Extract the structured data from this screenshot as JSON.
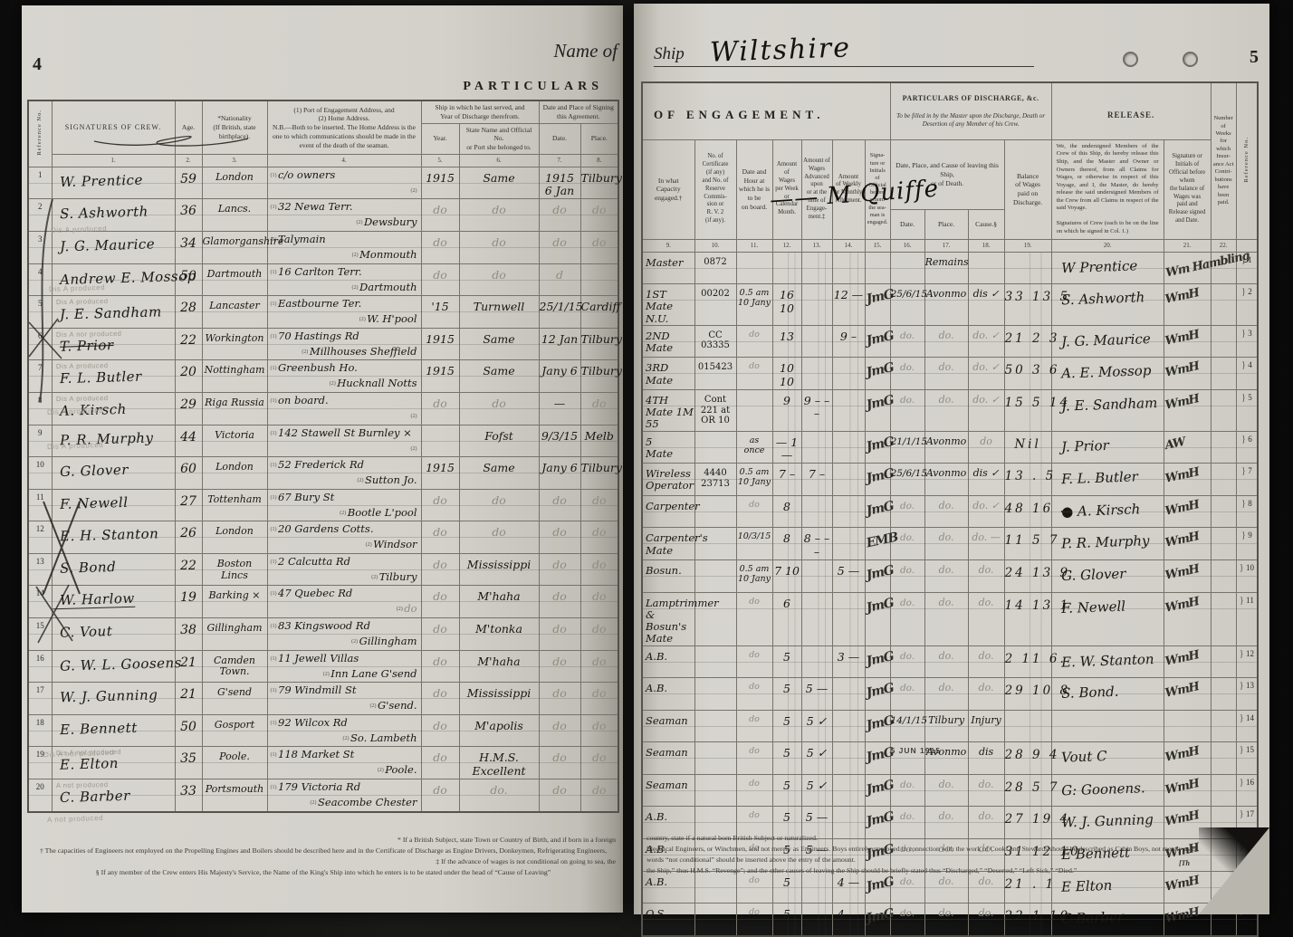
{
  "page_left": {
    "page_number": "4",
    "name_of_label": "Name of",
    "title": "PARTICULARS",
    "columns": {
      "ref": "Reference No.",
      "signatures": "SIGNATURES OF CREW.",
      "age": "Age.",
      "nationality": "*Nationality\n(If British, state\nbirthplace).",
      "address": "(1) Port of Engagement Address, and\n(2) Home Address.\nN.B.—Both to be inserted.  The Home Address is the\none to which communications should be made in the\nevent of the death of the seaman.",
      "ship_group": "Ship in which he last served, and\nYear of Discharge therefrom.",
      "year": "Year.",
      "ship_name": "State Name and Official No.\nor Port she belonged to.",
      "sign_group": "Date and Place of Signing\nthis Agreement.",
      "date": "Date.",
      "place": "Place."
    },
    "colnums": [
      "1.",
      "2.",
      "3.",
      "4.",
      "5.",
      "6.",
      "7.",
      "8."
    ],
    "margin_stamps": [
      "Dis A produced",
      "Dis A produced",
      "Dis A produced",
      "Dis A produced",
      "Dis A not produced",
      "A not produced"
    ],
    "footnotes": [
      "* If a British Subject, state Town or Country of Birth, and if born in a foreign",
      "† The capacities of Engineers not employed on the Propelling Engines and Boilers should be described here and in the Certificate of Discharge as Engine Drivers, Donkeymen, Refrigerating Engineers,",
      "‡ If the advance of wages is not conditional on going to sea, the",
      "§ If any member of the Crew enters His Majesty's Service, the Name of the King's Ship into which he enters is to be stated under the head of “Cause of Leaving”"
    ]
  },
  "page_right": {
    "page_number": "5",
    "ship_label": "Ship",
    "ship_name": "Wiltshire",
    "engagement_title": "OF ENGAGEMENT.",
    "discharge_title": "PARTICULARS OF DISCHARGE, &c.",
    "discharge_subtitle": "To be filled in by the Master upon the Discharge, Death or\nDesertion of any Member of his Crew.",
    "release_title": "RELEASE.",
    "master_signature": "—— M Quiffe",
    "columns": {
      "capacity": "In what\nCapacity\nengaged.†",
      "certificate": "No. of\nCertificate\n(if any)\nand No. of\nReserve\nCommis-\nsion or\nR. V. 2\n(if any).",
      "board_time": "Date and\nHour at\nwhich he is\nto be\non board.",
      "wages": "Amount of\nWages\nper Week\nor Calendar\nMonth.",
      "advance": "Amount of\nWages\nAdvanced\nupon\nor at the\ntime of\nEngage-\nment.‡",
      "allotment": "Amount\nof Weekly\nor Monthly\nAllotment.",
      "official": "Signa-\nture or\nInitials\nof\nOfficial\nbefore\nwhom\nthe sea-\nman is\nengaged.",
      "leave_group": "Date, Place, and Cause of leaving this Ship,\nor of Death.",
      "leave_date": "Date.",
      "leave_place": "Place.",
      "leave_cause": "Cause.§",
      "balance": "Balance\nof Wages\npaid on\nDischarge.",
      "release_text": "We, the undersigned Members of the Crew of this Ship, do hereby release this Ship, and the Master and Owner or Owners thereof, from all Claims for Wages, or otherwise in respect of this Voyage, and I, the Master, do hereby release the said undersigned Members of the Crew from all Claims in respect of the said Voyage.\n\nSignatures of Crew (each to be on the line on which he signed in Col. 1.)",
      "release_official": "Signature or\nInitials of\nOfficial before\nwhom\nthe balance of\nWages was\npaid and\nRelease signed\nand Date.",
      "weeks": "Number\nof\nWeeks\nfor\nwhich\nInsur-\nance Act\nContri-\nbutions\nhave\nbeen\npaid.",
      "ref": "Reference No."
    },
    "colnums": [
      "9.",
      "10.",
      "11.",
      "12.",
      "13.",
      "14.",
      "15.",
      "16.",
      "17.",
      "18.",
      "19.",
      "20.",
      "21.",
      "22.",
      ""
    ],
    "footnotes": [
      "country, state if a natural born British Subject or naturalized.",
      "Electrical Engineers, or Winchmen, and not merely as Engineers.    Boys entirely employed in connection with the work of Cooks and Stewards should be described as Cabin Boys, not merely as B",
      "words “not conditional” should be inserted above the entry of the amount.",
      "the Ship,” thus H.M.S. “Revenge”; and the other causes of leaving the Ship should be briefly stated thus “Discharged,” “Deserted,” “Left Sick,” “Died.”"
    ],
    "corner_note": "[Th"
  },
  "crew": [
    {
      "ref": "1",
      "sig": "W. Prentice",
      "stamp": "",
      "age": "59",
      "nat": "London",
      "a1": "c/o owners",
      "a2": "",
      "year": "1915",
      "ship": "Same",
      "sdate": "1915\n6 Jan",
      "splace": "Tilbury",
      "cap": "Master",
      "cert": "0872",
      "hour": "",
      "wage": "",
      "adv": "",
      "allot": "",
      "osig": "",
      "ldate": "",
      "lplace": "Remains",
      "lcause": "",
      "bal": "",
      "rsig": "W Prentice",
      "orel": "Wm Hambling",
      "weeks": ""
    },
    {
      "ref": "2",
      "sig": "S. Ashworth",
      "stamp": "",
      "age": "36",
      "nat": "Lancs.",
      "a1": "32 Newa Terr.",
      "a2": "Dewsbury",
      "year": "do",
      "ship": "do",
      "sdate": "do",
      "splace": "do",
      "cap": "1ST\nMate  N.U.",
      "cert": "00202",
      "hour": "0.5 am\n10 Jany",
      "wage": "16 10",
      "adv": "",
      "allot": "12 —",
      "osig": "JmG",
      "ldate": "25/6/15",
      "lplace": "Avonmo",
      "lcause": "dis ✓",
      "bal": "33 13 5",
      "rsig": "S. Ashworth",
      "orel": "WmH",
      "weeks": ""
    },
    {
      "ref": "3",
      "sig": "J. G. Maurice",
      "stamp": "",
      "age": "34",
      "nat": "Glamorganshire",
      "a1": "Talymain",
      "a2": "Monmouth",
      "year": "do",
      "ship": "do",
      "sdate": "do",
      "splace": "do",
      "cap": "2ND\nMate",
      "cert": "CC\n03335",
      "hour": "do",
      "wage": "13",
      "adv": "",
      "allot": "9 –",
      "osig": "JmG",
      "ldate": "do.",
      "lplace": "do.",
      "lcause": "do. ✓",
      "bal": "21 2 3",
      "rsig": "J. G. Maurice",
      "orel": "WmH",
      "weeks": ""
    },
    {
      "ref": "4",
      "sig": "Andrew E. Mossop",
      "stamp": "",
      "age": "50",
      "nat": "Dartmouth",
      "a1": "16 Carlton Terr.",
      "a2": "Dartmouth",
      "year": "do",
      "ship": "do",
      "sdate": "d",
      "splace": "",
      "cap": "3RD\nMate",
      "cert": "015423",
      "hour": "do",
      "wage": "10 10",
      "adv": "",
      "allot": "",
      "osig": "JmG",
      "ldate": "do.",
      "lplace": "do.",
      "lcause": "do. ✓",
      "bal": "50 3 6",
      "rsig": "A. E. Mossop",
      "orel": "WmH",
      "weeks": ""
    },
    {
      "ref": "5",
      "sig": "J. E. Sandham",
      "stamp": "Dis A produced",
      "age": "28",
      "nat": "Lancaster",
      "a1": "Eastbourne Ter.",
      "a2": "W. H'pool",
      "year": "'15",
      "ship": "Turnwell",
      "sdate": "25/1/15",
      "splace": "Cardiff",
      "cap": "4TH\nMate  1M 55",
      "cert": "Cont 221 at\nOR 10",
      "hour": "",
      "wage": "9",
      "adv": "9 – – –",
      "allot": "",
      "osig": "JmG",
      "ldate": "do.",
      "lplace": "do.",
      "lcause": "do. ✓",
      "bal": "15 5 14",
      "rsig": "J. E. Sandham",
      "orel": "WmH",
      "weeks": ""
    },
    {
      "ref": "6",
      "sig": "T. Prior",
      "struck": true,
      "stamp": "Dis A nor produced",
      "age": "22",
      "nat": "Workington",
      "a1": "70 Hastings Rd",
      "a2": "Millhouses Sheffield",
      "year": "1915",
      "ship": "Same",
      "sdate": "12 Jan",
      "splace": "Tilbury",
      "cap": "5\nMate",
      "cert": "",
      "hour": "as\nonce",
      "wage": "— 1 —",
      "adv": "",
      "allot": "",
      "osig": "JmG",
      "ldate": "21/1/15",
      "lplace": "Avonmo",
      "lcause": "do",
      "bal": "Nil",
      "rsig": "J. Prior",
      "orel": "AW",
      "weeks": ""
    },
    {
      "ref": "7",
      "sig": "F. L. Butler",
      "stamp": "Dis A produced",
      "age": "20",
      "nat": "Nottingham",
      "a1": "Greenbush Ho.",
      "a2": "Hucknall Notts",
      "year": "1915",
      "ship": "Same",
      "sdate": "Jany 6",
      "splace": "Tilbury",
      "cap": "Wireless\nOperator",
      "cert": "4440\n23713",
      "hour": "0.5 am\n10 Jany",
      "wage": "7 –",
      "adv": "7 –",
      "allot": "",
      "osig": "JmG",
      "ldate": "25/6/15",
      "lplace": "Avonmo",
      "lcause": "dis ✓",
      "bal": "13 . 5",
      "rsig": "F. L. Butler",
      "orel": "WmH",
      "weeks": ""
    },
    {
      "ref": "8",
      "sig": "A. Kirsch",
      "stamp": "Dis A produced",
      "age": "29",
      "nat": "Riga Russia",
      "a1": "on board.",
      "a2": "",
      "year": "do",
      "ship": "do",
      "sdate": "—",
      "splace": "do",
      "cap": "Carpenter",
      "cert": "",
      "hour": "do",
      "wage": "8",
      "adv": "",
      "allot": "",
      "osig": "JmG",
      "ldate": "do.",
      "lplace": "do.",
      "lcause": "do. ✓",
      "bal": "48 16 .",
      "rsig": "●  A. Kirsch",
      "orel": "WmH",
      "weeks": ""
    },
    {
      "ref": "9",
      "sig": "P. R. Murphy",
      "stamp": "",
      "age": "44",
      "nat": "Victoria",
      "a1": "142 Stawell St Burnley ×",
      "a2": "",
      "year": "",
      "ship": "Fofst",
      "sdate": "9/3/15",
      "splace": "Melb",
      "cap": "Carpenter's\nMate",
      "cert": "",
      "hour": "10/3/15",
      "wage": "8",
      "adv": "8 – – –",
      "allot": "",
      "osig": "EMB",
      "ldate": "do.",
      "lplace": "do.",
      "lcause": "do. —",
      "bal": "11 5 7",
      "rsig": "P. R. Murphy",
      "orel": "WmH",
      "weeks": ""
    },
    {
      "ref": "10",
      "sig": "G. Glover",
      "stamp": "",
      "age": "60",
      "nat": "London",
      "a1": "52 Frederick Rd",
      "a2": "Sutton Jo.",
      "year": "1915",
      "ship": "Same",
      "sdate": "Jany 6",
      "splace": "Tilbury",
      "cap": "Bosun.",
      "cert": "",
      "hour": "0.5 am\n10 Jany",
      "wage": "7 10",
      "adv": "",
      "allot": "5 —",
      "osig": "JmG",
      "ldate": "do.",
      "lplace": "do.",
      "lcause": "do.",
      "bal": "24 13 9",
      "rsig": "G. Glover",
      "orel": "WmH",
      "weeks": ""
    },
    {
      "ref": "11",
      "sig": "F. Newell",
      "stamp": "",
      "age": "27",
      "nat": "Tottenham",
      "a1": "67 Bury St",
      "a2": "Bootle L'pool",
      "year": "do",
      "ship": "do",
      "sdate": "do",
      "splace": "do",
      "cap": "Lamptrimmer\n& Bosun's\nMate",
      "cert": "",
      "hour": "do",
      "wage": "6",
      "adv": "",
      "allot": "",
      "osig": "JmG",
      "ldate": "do.",
      "lplace": "do.",
      "lcause": "do.",
      "bal": "14 13 1",
      "rsig": "F. Newell",
      "orel": "WmH",
      "weeks": ""
    },
    {
      "ref": "12",
      "sig": "E. H. Stanton",
      "stamp": "",
      "age": "26",
      "nat": "London",
      "a1": "20 Gardens Cotts.",
      "a2": "Windsor",
      "year": "do",
      "ship": "do",
      "sdate": "do",
      "splace": "do",
      "cap": "A.B.",
      "cert": "",
      "hour": "do",
      "wage": "5",
      "adv": "",
      "allot": "3 —",
      "osig": "JmG",
      "ldate": "do.",
      "lplace": "do.",
      "lcause": "do.",
      "bal": "2 11 6.",
      "rsig": "E. W. Stanton",
      "orel": "WmH",
      "weeks": ""
    },
    {
      "ref": "13",
      "sig": "S. Bond",
      "stamp": "",
      "age": "22",
      "nat": "Boston Lincs",
      "a1": "2 Calcutta Rd",
      "a2": "Tilbury",
      "year": "do",
      "ship": "Mississippi",
      "sdate": "do",
      "splace": "do",
      "cap": "A.B.",
      "cert": "",
      "hour": "do",
      "wage": "5",
      "adv": "5 —",
      "allot": "",
      "osig": "JmG",
      "ldate": "do.",
      "lplace": "do.",
      "lcause": "do.",
      "bal": "29 10 8",
      "rsig": "S. Bond.",
      "orel": "WmH",
      "weeks": ""
    },
    {
      "ref": "14",
      "sig": "W. Harlow",
      "underline": true,
      "stamp": "",
      "age": "19",
      "nat": "Barking ×",
      "a1": "47 Quebec Rd",
      "a2": "do",
      "year": "do",
      "ship": "M'haha",
      "sdate": "do",
      "splace": "do",
      "cap": "Seaman",
      "cert": "",
      "hour": "do",
      "wage": "5",
      "adv": "5 ✓",
      "allot": "",
      "osig": "JmG",
      "ldate": "14/1/15",
      "lplace": "Tilbury",
      "lcause": "Injury",
      "bal": "",
      "rsig": "",
      "orel": "",
      "weeks": ""
    },
    {
      "ref": "15",
      "sig": "C. Vout",
      "stamp": "",
      "age": "38",
      "nat": "Gillingham",
      "a1": "83 Kingswood Rd",
      "a2": "Gillingham",
      "year": "do",
      "ship": "M'tonka",
      "sdate": "do",
      "splace": "do",
      "cap": "Seaman",
      "cert": "",
      "hour": "do",
      "wage": "5",
      "adv": "5 ✓",
      "allot": "",
      "osig": "JmG",
      "ldate": "5 JUN 1915",
      "lplace": "Avonmo",
      "lcause": "dis",
      "bal": "28 9 4",
      "rsig": "Vout C",
      "orel": "WmH",
      "weeks": ""
    },
    {
      "ref": "16",
      "sig": "G. W. L. Goosens",
      "stamp": "",
      "age": "21",
      "nat": "Camden\nTown.",
      "a1": "11 Jewell Villas",
      "a2": "Inn Lane G'send",
      "year": "do",
      "ship": "M'haha",
      "sdate": "do",
      "splace": "do",
      "cap": "Seaman",
      "cert": "",
      "hour": "do",
      "wage": "5",
      "adv": "5 ✓",
      "allot": "",
      "osig": "JmG",
      "ldate": "do.",
      "lplace": "do.",
      "lcause": "do.",
      "bal": "28 5 7",
      "rsig": "G: Goonens.",
      "orel": "WmH",
      "weeks": ""
    },
    {
      "ref": "17",
      "sig": "W. J. Gunning",
      "stamp": "",
      "age": "21",
      "nat": "G'send",
      "a1": "79 Windmill St",
      "a2": "G'send.",
      "year": "do",
      "ship": "Mississippi",
      "sdate": "do",
      "splace": "do",
      "cap": "A.B.",
      "cert": "",
      "hour": "do",
      "wage": "5",
      "adv": "5 —",
      "allot": "",
      "osig": "JmG",
      "ldate": "do.",
      "lplace": "do.",
      "lcause": "do.",
      "bal": "27 19 4",
      "rsig": "W. J. Gunning",
      "orel": "WmH",
      "weeks": ""
    },
    {
      "ref": "18",
      "sig": "E. Bennett",
      "stamp": "",
      "age": "50",
      "nat": "Gosport",
      "a1": "92 Wilcox Rd",
      "a2": "So. Lambeth",
      "year": "do",
      "ship": "M'apolis",
      "sdate": "do",
      "splace": "do",
      "cap": "A.B.",
      "cert": "",
      "hour": "do",
      "wage": "5",
      "adv": "5 —",
      "allot": "",
      "osig": "JmG",
      "ldate": "do.",
      "lplace": "do.",
      "lcause": "do.",
      "bal": "31 12 10",
      "rsig": "E Bennett",
      "orel": "WmH",
      "weeks": ""
    },
    {
      "ref": "19",
      "sig": "E. Elton",
      "stamp": "Dis A not produced",
      "age": "35",
      "nat": "Poole.",
      "a1": "118 Market St",
      "a2": "Poole.",
      "year": "do",
      "ship": "H.M.S.\nExcellent",
      "sdate": "do",
      "splace": "do",
      "cap": "A.B.",
      "cert": "",
      "hour": "do",
      "wage": "5",
      "adv": "",
      "allot": "4 —",
      "osig": "JmG",
      "ldate": "do.",
      "lplace": "do.",
      "lcause": "do.",
      "bal": "21 . 1",
      "rsig": "E Elton",
      "orel": "WmH",
      "weeks": ""
    },
    {
      "ref": "20",
      "sig": "C. Barber",
      "stamp": "A not produced",
      "age": "33",
      "nat": "Portsmouth",
      "a1": "179 Victoria Rd",
      "a2": "Seacombe Chester",
      "year": "do",
      "ship": "do.",
      "sdate": "do",
      "splace": "do",
      "cap": "O.S.",
      "cert": "",
      "hour": "do",
      "wage": "5",
      "adv": "",
      "allot": "4 —",
      "osig": "JmG",
      "ldate": "do.",
      "lplace": "do.",
      "lcause": "do.",
      "bal": "22 1 10",
      "rsig": "C Barber",
      "orel": "WmH",
      "weeks": ""
    }
  ]
}
